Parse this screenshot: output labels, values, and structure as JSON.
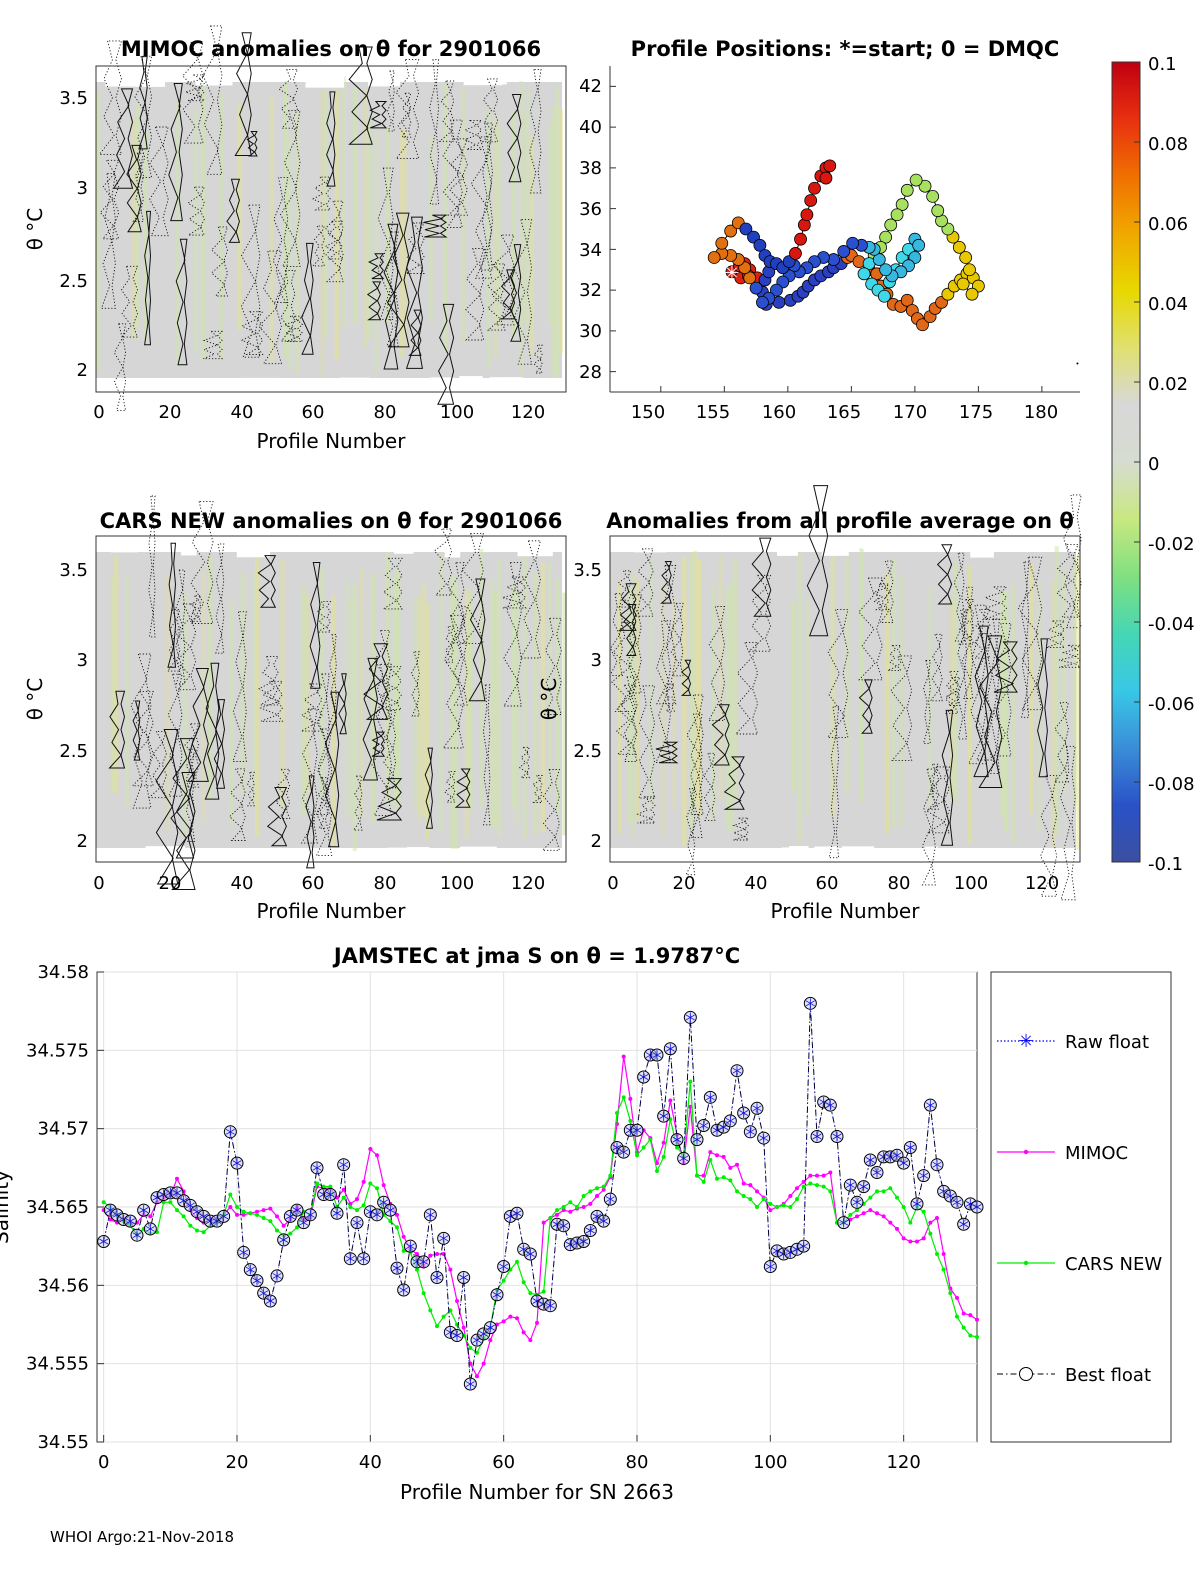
{
  "footer": "WHOI Argo:21-Nov-2018",
  "colormap": [
    "#3b4fa0",
    "#2a52c8",
    "#3a8ed8",
    "#38c8e6",
    "#46d6b4",
    "#80e080",
    "#c8e880",
    "#d6dcd0",
    "#d8d8d8",
    "#e0e070",
    "#e8d800",
    "#f0a800",
    "#f07000",
    "#e83010",
    "#c00010"
  ],
  "panels": {
    "mimoc": {
      "title": "MIMOC anomalies on θ  for 2901066",
      "xlabel": "Profile Number",
      "ylabel": "θ °C",
      "xticks": [
        "0",
        "20",
        "40",
        "60",
        "80",
        "100",
        "120"
      ],
      "yticks": [
        "2",
        "2.5",
        "3",
        "3.5"
      ]
    },
    "positions": {
      "title": "Profile Positions: *=start; 0 = DMQC",
      "xticks": [
        "150",
        "155",
        "160",
        "165",
        "170",
        "175",
        "180"
      ],
      "yticks": [
        "28",
        "30",
        "32",
        "34",
        "36",
        "38",
        "40",
        "42"
      ]
    },
    "cars": {
      "title": "CARS NEW anomalies on θ for 2901066",
      "xlabel": "Profile Number",
      "ylabel": "θ °C",
      "xticks": [
        "0",
        "20",
        "40",
        "60",
        "80",
        "100",
        "120"
      ],
      "yticks": [
        "2",
        "2.5",
        "3",
        "3.5"
      ]
    },
    "allprof": {
      "title": "Anomalies from all profile average on θ",
      "xlabel": "Profile Number",
      "ylabel": "θ °C",
      "xticks": [
        "0",
        "20",
        "40",
        "60",
        "80",
        "100",
        "120"
      ],
      "yticks": [
        "2",
        "2.5",
        "3",
        "3.5"
      ]
    },
    "colorbar": {
      "ticks": [
        "0.1",
        "0.08",
        "0.06",
        "0.04",
        "0.02",
        "0",
        "-0.02",
        "-0.04",
        "-0.06",
        "-0.08",
        "-0.1"
      ]
    }
  },
  "chart_data": [
    {
      "type": "heatmap",
      "title": "MIMOC anomalies on θ  for 2901066",
      "xlabel": "Profile Number",
      "ylabel": "θ °C",
      "xlim": [
        0,
        130
      ],
      "ylim": [
        1.93,
        3.67
      ]
    },
    {
      "type": "scatter",
      "title": "Profile Positions: *=start; 0 = DMQC",
      "xlim": [
        146,
        183
      ],
      "ylim": [
        27,
        43
      ],
      "start": [
        155.6,
        32.9
      ],
      "points": [
        [
          155.6,
          32.9
        ],
        [
          156.2,
          33.2
        ],
        [
          156.6,
          33.3
        ],
        [
          157.0,
          33.0
        ],
        [
          156.3,
          32.6
        ],
        [
          156.9,
          32.7
        ],
        [
          157.6,
          32.6
        ],
        [
          158.2,
          32.5
        ],
        [
          158.5,
          32.9
        ],
        [
          158.0,
          31.9
        ],
        [
          158.3,
          31.3
        ],
        [
          159.3,
          31.4
        ],
        [
          160.2,
          31.5
        ],
        [
          160.8,
          31.7
        ],
        [
          161.2,
          31.9
        ],
        [
          161.6,
          32.2
        ],
        [
          162.1,
          32.5
        ],
        [
          162.6,
          32.7
        ],
        [
          163.2,
          32.9
        ],
        [
          163.6,
          33.1
        ],
        [
          164.2,
          33.3
        ],
        [
          164.7,
          33.6
        ],
        [
          165.0,
          33.7
        ],
        [
          165.6,
          33.4
        ],
        [
          166.4,
          33.0
        ],
        [
          167.0,
          32.8
        ],
        [
          167.3,
          32.2
        ],
        [
          167.8,
          31.8
        ],
        [
          168.3,
          31.3
        ],
        [
          168.9,
          31.2
        ],
        [
          169.4,
          31.5
        ],
        [
          169.8,
          31.0
        ],
        [
          170.2,
          30.6
        ],
        [
          170.6,
          30.3
        ],
        [
          171.2,
          30.7
        ],
        [
          171.6,
          31.1
        ],
        [
          172.1,
          31.4
        ],
        [
          172.6,
          31.8
        ],
        [
          173.1,
          32.2
        ],
        [
          173.6,
          32.5
        ],
        [
          174.1,
          32.8
        ],
        [
          174.6,
          32.6
        ],
        [
          175.0,
          32.2
        ],
        [
          174.5,
          31.8
        ],
        [
          173.8,
          32.3
        ],
        [
          174.3,
          33.0
        ],
        [
          174.0,
          33.6
        ],
        [
          173.5,
          34.1
        ],
        [
          173.0,
          34.6
        ],
        [
          172.6,
          35.0
        ],
        [
          172.1,
          35.4
        ],
        [
          171.8,
          35.9
        ],
        [
          171.4,
          36.6
        ],
        [
          170.8,
          37.1
        ],
        [
          170.1,
          37.4
        ],
        [
          169.4,
          36.9
        ],
        [
          169.0,
          36.2
        ],
        [
          168.6,
          35.7
        ],
        [
          168.1,
          35.2
        ],
        [
          167.7,
          34.6
        ],
        [
          167.3,
          34.1
        ],
        [
          166.8,
          33.7
        ],
        [
          166.4,
          33.3
        ],
        [
          166.0,
          32.8
        ],
        [
          166.6,
          32.3
        ],
        [
          167.1,
          32.0
        ],
        [
          167.6,
          31.7
        ],
        [
          168.0,
          32.4
        ],
        [
          168.5,
          33.0
        ],
        [
          169.0,
          33.6
        ],
        [
          169.5,
          34.0
        ],
        [
          170.0,
          34.5
        ],
        [
          170.3,
          34.2
        ],
        [
          170.0,
          33.6
        ],
        [
          169.5,
          33.2
        ],
        [
          168.9,
          32.9
        ],
        [
          168.2,
          32.7
        ],
        [
          167.7,
          33.0
        ],
        [
          167.2,
          33.5
        ],
        [
          166.8,
          34.0
        ],
        [
          166.4,
          34.1
        ],
        [
          165.8,
          34.2
        ],
        [
          165.1,
          34.3
        ],
        [
          164.4,
          33.9
        ],
        [
          163.6,
          33.5
        ],
        [
          162.8,
          33.6
        ],
        [
          162.1,
          33.4
        ],
        [
          161.5,
          33.1
        ],
        [
          160.9,
          32.9
        ],
        [
          160.5,
          33.2
        ],
        [
          160.1,
          32.7
        ],
        [
          159.6,
          32.4
        ],
        [
          159.1,
          32.0
        ],
        [
          158.5,
          31.6
        ],
        [
          158.0,
          31.4
        ],
        [
          157.5,
          32.1
        ],
        [
          157.0,
          32.6
        ],
        [
          156.6,
          33.1
        ],
        [
          156.1,
          33.5
        ],
        [
          155.5,
          33.7
        ],
        [
          154.8,
          33.8
        ],
        [
          154.2,
          33.6
        ],
        [
          154.8,
          34.3
        ],
        [
          155.5,
          34.9
        ],
        [
          156.1,
          35.3
        ],
        [
          156.7,
          35.0
        ],
        [
          157.3,
          34.6
        ],
        [
          157.8,
          34.2
        ],
        [
          158.2,
          33.7
        ],
        [
          158.6,
          33.4
        ],
        [
          159.1,
          33.3
        ],
        [
          159.6,
          33.1
        ],
        [
          160.1,
          33.4
        ],
        [
          160.6,
          33.8
        ],
        [
          161.0,
          34.5
        ],
        [
          161.3,
          35.2
        ],
        [
          161.5,
          35.7
        ],
        [
          161.8,
          36.4
        ],
        [
          162.1,
          37.0
        ],
        [
          162.6,
          37.6
        ],
        [
          163.0,
          38.0
        ],
        [
          163.3,
          38.1
        ],
        [
          163.0,
          37.5
        ]
      ]
    },
    {
      "type": "heatmap",
      "title": "CARS NEW anomalies on θ for 2901066",
      "xlabel": "Profile Number",
      "ylabel": "θ °C",
      "xlim": [
        0,
        130
      ],
      "ylim": [
        1.93,
        3.67
      ]
    },
    {
      "type": "heatmap",
      "title": "Anomalies from all profile average on θ",
      "xlabel": "Profile Number",
      "ylabel": "θ °C",
      "xlim": [
        0,
        130
      ],
      "ylim": [
        1.93,
        3.67
      ]
    },
    {
      "type": "line",
      "title": "JAMSTEC at jma S on θ = 1.9787°C",
      "xlabel": "Profile Number for SN 2663",
      "ylabel": "Salinity",
      "xlim": [
        -1,
        131
      ],
      "ylim": [
        34.55,
        34.58
      ],
      "xticks": [
        0,
        20,
        40,
        60,
        80,
        100,
        120
      ],
      "yticks": [
        34.55,
        34.555,
        34.56,
        34.565,
        34.57,
        34.575,
        34.58
      ],
      "ytick_labels": [
        "34.55",
        "34.555",
        "34.56",
        "34.565",
        "34.57",
        "34.575",
        "34.58"
      ],
      "legend": [
        "Raw float",
        "MIMOC",
        "CARS NEW",
        "Best float"
      ],
      "series": [
        {
          "name": "Best float",
          "color": "#000000",
          "values": [
            34.5628,
            34.5648,
            34.5645,
            34.5642,
            34.5641,
            34.5632,
            34.5648,
            34.5636,
            34.5656,
            34.5658,
            34.5659,
            34.5659,
            34.5654,
            34.5651,
            34.5647,
            34.5644,
            34.5641,
            34.5641,
            34.5644,
            34.5698,
            34.5678,
            34.5621,
            34.561,
            34.5603,
            34.5595,
            34.559,
            34.5606,
            34.5629,
            34.5644,
            34.5648,
            34.564,
            34.5645,
            34.5675,
            34.5658,
            34.5658,
            34.5646,
            34.5677,
            34.5617,
            34.564,
            34.5617,
            34.5647,
            34.5645,
            34.5653,
            34.5648,
            34.5611,
            34.5597,
            34.5625,
            34.5615,
            34.5615,
            34.5645,
            34.5605,
            34.563,
            34.557,
            34.5568,
            34.5605,
            34.5537,
            34.5565,
            34.5569,
            34.5573,
            34.5594,
            34.5612,
            34.5644,
            34.5646,
            34.5623,
            34.562,
            34.559,
            34.5588,
            34.5587,
            34.5639,
            34.5638,
            34.5626,
            34.5627,
            34.5628,
            34.5635,
            34.5644,
            34.5641,
            34.5655,
            34.5688,
            34.5685,
            34.5699,
            34.5699,
            34.5733,
            34.5747,
            34.5747,
            34.5708,
            34.5751,
            34.5693,
            34.5681,
            34.5771,
            34.5693,
            34.5702,
            34.572,
            34.5699,
            34.5701,
            34.5705,
            34.5737,
            34.571,
            34.5698,
            34.5713,
            34.5694,
            34.5612,
            34.5622,
            34.562,
            34.5621,
            34.5623,
            34.5625,
            34.578,
            34.5695,
            34.5717,
            34.5715,
            34.5695,
            34.564,
            34.5664,
            34.5653,
            34.5663,
            34.568,
            34.5672,
            34.5682,
            34.5682,
            34.5683,
            34.5678,
            34.5688,
            34.5652,
            34.567,
            34.5715,
            34.5677,
            34.566,
            34.5657,
            34.5653,
            34.5639,
            34.5652,
            34.565
          ]
        },
        {
          "name": "MIMOC",
          "color": "#ff00ff",
          "values": [
            34.5648,
            34.5642,
            34.564,
            34.5642,
            34.5639,
            34.564,
            34.5645,
            34.5644,
            34.5653,
            34.5656,
            34.5657,
            34.5668,
            34.566,
            34.5648,
            34.5643,
            34.564,
            34.5642,
            34.564,
            34.5645,
            34.565,
            34.5645,
            34.5645,
            34.5646,
            34.5647,
            34.5648,
            34.5649,
            34.5644,
            34.5638,
            34.5642,
            34.565,
            34.5642,
            34.5643,
            34.5663,
            34.5662,
            34.5662,
            34.5656,
            34.5661,
            34.5652,
            34.5655,
            34.5666,
            34.5687,
            34.5683,
            34.5664,
            34.5652,
            34.5645,
            34.5631,
            34.5623,
            34.562,
            34.5612,
            34.5619,
            34.562,
            34.562,
            34.561,
            34.559,
            34.5573,
            34.555,
            34.5542,
            34.555,
            34.5565,
            34.5575,
            34.5577,
            34.558,
            34.5579,
            34.557,
            34.5565,
            34.5576,
            34.564,
            34.5643,
            34.5645,
            34.5648,
            34.5647,
            34.5649,
            34.565,
            34.5652,
            34.5657,
            34.5661,
            34.5669,
            34.5703,
            34.5746,
            34.5719,
            34.5685,
            34.5699,
            34.5694,
            34.5678,
            34.5691,
            34.5718,
            34.5696,
            34.5678,
            34.5714,
            34.567,
            34.567,
            34.5685,
            34.5683,
            34.5682,
            34.5675,
            34.5677,
            34.5665,
            34.5664,
            34.566,
            34.5656,
            34.5648,
            34.565,
            34.5652,
            34.5657,
            34.5662,
            34.5666,
            34.567,
            34.567,
            34.567,
            34.5672,
            34.564,
            34.564,
            34.5642,
            34.5644,
            34.5646,
            34.5648,
            34.5646,
            34.5644,
            34.564,
            34.5636,
            34.563,
            34.5628,
            34.5628,
            34.563,
            34.564,
            34.5643,
            34.562,
            34.5598,
            34.5592,
            34.5582,
            34.5581,
            34.5578
          ]
        },
        {
          "name": "CARS NEW",
          "color": "#00ee00",
          "values": [
            34.5653,
            34.565,
            34.5645,
            34.5641,
            34.5638,
            34.5632,
            34.5636,
            34.5633,
            34.5634,
            34.5653,
            34.5653,
            34.5648,
            34.5644,
            34.5638,
            34.5635,
            34.5634,
            34.5638,
            34.564,
            34.5645,
            34.5658,
            34.565,
            34.5647,
            34.5646,
            34.5645,
            34.5643,
            34.5641,
            34.5635,
            34.5632,
            34.5633,
            34.5637,
            34.5647,
            34.5645,
            34.5665,
            34.5663,
            34.5663,
            34.565,
            34.5656,
            34.565,
            34.5648,
            34.5651,
            34.5665,
            34.5662,
            34.5645,
            34.5641,
            34.5637,
            34.5622,
            34.5621,
            34.561,
            34.5595,
            34.5584,
            34.5574,
            34.558,
            34.5584,
            34.5575,
            34.5568,
            34.556,
            34.5557,
            34.5566,
            34.5573,
            34.5597,
            34.5603,
            34.561,
            34.5615,
            34.5602,
            34.5595,
            34.5594,
            34.5596,
            34.5643,
            34.5648,
            34.565,
            34.5653,
            34.565,
            34.5657,
            34.566,
            34.5662,
            34.5663,
            34.567,
            34.571,
            34.572,
            34.5705,
            34.5683,
            34.5688,
            34.5693,
            34.5673,
            34.5682,
            34.5706,
            34.5688,
            34.5683,
            34.573,
            34.567,
            34.5666,
            34.568,
            34.5668,
            34.5669,
            34.5667,
            34.566,
            34.5657,
            34.5655,
            34.565,
            34.5655,
            34.5652,
            34.565,
            34.5651,
            34.565,
            34.5655,
            34.5663,
            34.5665,
            34.5664,
            34.5663,
            34.566,
            34.564,
            34.564,
            34.5645,
            34.5648,
            34.5652,
            34.5656,
            34.566,
            34.566,
            34.5662,
            34.5656,
            34.565,
            34.564,
            34.565,
            34.5647,
            34.5633,
            34.562,
            34.561,
            34.5595,
            34.558,
            34.5573,
            34.5568,
            34.5567
          ]
        }
      ]
    }
  ]
}
